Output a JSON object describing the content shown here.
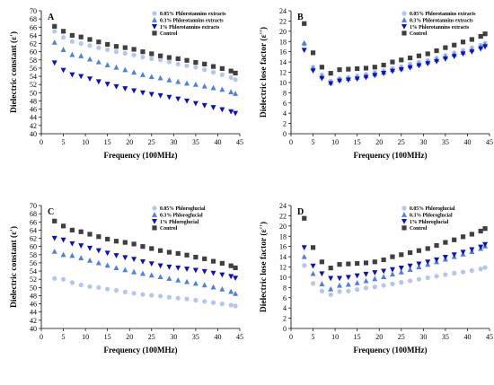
{
  "series_styles": [
    {
      "marker": "circle",
      "color": "#b4c6ee"
    },
    {
      "marker": "triangle-up",
      "color": "#4e80e4"
    },
    {
      "marker": "triangle-down",
      "color": "#0c12c4"
    },
    {
      "marker": "square",
      "color": "#3f3f3f"
    }
  ],
  "chart_data": [
    {
      "panel": "A",
      "type": "scatter",
      "xlabel": "Frequency (100MHz)",
      "ylabel": "Dielectric constant (ε')",
      "xlim": [
        0,
        45
      ],
      "ylim": [
        40,
        70
      ],
      "xticks": [
        "0",
        "5",
        "10",
        "15",
        "20",
        "25",
        "30",
        "35",
        "40",
        "45"
      ],
      "yticks": [
        "40",
        "42",
        "44",
        "46",
        "48",
        "50",
        "52",
        "54",
        "56",
        "58",
        "60",
        "62",
        "64",
        "66",
        "68",
        "70"
      ],
      "legend_position": "top-right",
      "x": [
        3,
        5,
        7,
        9,
        11,
        13,
        15,
        17,
        19,
        21,
        23,
        25,
        27,
        29,
        31,
        33,
        35,
        37,
        39,
        41,
        43,
        44
      ],
      "series": [
        {
          "name": "0.05% Phlorotannins extracts",
          "values": [
            65.0,
            63.5,
            62.5,
            62.0,
            61.5,
            61.0,
            60.5,
            60.0,
            59.6,
            59.2,
            58.7,
            58.3,
            58.0,
            57.5,
            57.0,
            56.6,
            56.2,
            55.6,
            55.0,
            54.4,
            53.7,
            53.2
          ]
        },
        {
          "name": "0.3% Phlorotannins extracts",
          "values": [
            62.3,
            60.5,
            59.3,
            59.0,
            58.2,
            57.5,
            56.8,
            56.2,
            55.6,
            55.0,
            54.4,
            53.9,
            53.6,
            53.1,
            52.7,
            52.3,
            52.0,
            51.6,
            51.2,
            50.8,
            50.2,
            49.8
          ]
        },
        {
          "name": "1% Phlorotannins extracts",
          "values": [
            57.3,
            55.5,
            54.4,
            54.0,
            53.4,
            52.7,
            52.1,
            51.5,
            51.0,
            50.5,
            50.0,
            49.6,
            49.3,
            48.9,
            48.5,
            48.0,
            47.4,
            46.9,
            46.4,
            45.9,
            45.4,
            45.0
          ]
        },
        {
          "name": "Control",
          "values": [
            66.2,
            65.0,
            64.0,
            63.6,
            63.0,
            62.4,
            61.8,
            61.3,
            61.0,
            60.6,
            60.0,
            59.5,
            59.0,
            58.6,
            58.3,
            57.9,
            57.4,
            57.0,
            56.4,
            55.9,
            55.3,
            54.8
          ]
        }
      ]
    },
    {
      "panel": "B",
      "type": "scatter",
      "xlabel": "Frequency (100MHz)",
      "ylabel": "Dielectric lose factor (ε'')",
      "xlim": [
        0,
        45
      ],
      "ylim": [
        0,
        24
      ],
      "xticks": [
        "0",
        "5",
        "10",
        "15",
        "20",
        "25",
        "30",
        "35",
        "40",
        "45"
      ],
      "yticks": [
        "0",
        "2",
        "4",
        "6",
        "8",
        "10",
        "12",
        "14",
        "16",
        "18",
        "20",
        "22",
        "24"
      ],
      "legend_position": "top-right",
      "x": [
        3,
        5,
        7,
        9,
        11,
        13,
        15,
        17,
        19,
        21,
        23,
        25,
        27,
        29,
        31,
        33,
        35,
        37,
        39,
        41,
        43,
        44
      ],
      "series": [
        {
          "name": "0.05% Phlorotannins extracts",
          "values": [
            17.5,
            13.0,
            11.5,
            10.3,
            10.8,
            11.0,
            11.3,
            11.6,
            12.0,
            12.3,
            12.8,
            13.1,
            13.6,
            14.0,
            14.3,
            14.8,
            15.3,
            15.8,
            16.3,
            16.8,
            17.3,
            17.7
          ]
        },
        {
          "name": "0.3% Phlorotannins extracts",
          "values": [
            17.7,
            12.8,
            11.2,
            10.0,
            10.6,
            10.8,
            11.0,
            11.3,
            11.7,
            12.0,
            12.5,
            12.8,
            13.2,
            13.6,
            14.0,
            14.5,
            15.0,
            15.5,
            15.9,
            16.4,
            17.0,
            17.4
          ]
        },
        {
          "name": "1% Phlorotannins extracts",
          "values": [
            16.3,
            12.3,
            10.8,
            9.8,
            10.3,
            10.5,
            10.7,
            11.0,
            11.4,
            11.8,
            12.2,
            12.5,
            12.9,
            13.3,
            13.7,
            14.1,
            14.6,
            15.1,
            15.6,
            16.0,
            16.6,
            17.0
          ]
        },
        {
          "name": "Control",
          "values": [
            21.5,
            15.8,
            13.0,
            11.8,
            12.5,
            12.6,
            12.7,
            12.8,
            13.0,
            13.4,
            14.0,
            14.4,
            14.8,
            15.2,
            15.6,
            16.2,
            16.8,
            17.3,
            17.9,
            18.4,
            19.0,
            19.5
          ]
        }
      ]
    },
    {
      "panel": "C",
      "type": "scatter",
      "xlabel": "Frequency (100MHz)",
      "ylabel": "Dielectric constant (ε')",
      "xlim": [
        0,
        45
      ],
      "ylim": [
        40,
        70
      ],
      "xticks": [
        "0",
        "5",
        "10",
        "15",
        "20",
        "25",
        "30",
        "35",
        "40",
        "45"
      ],
      "yticks": [
        "40",
        "42",
        "44",
        "46",
        "48",
        "50",
        "52",
        "54",
        "56",
        "58",
        "60",
        "62",
        "64",
        "66",
        "68",
        "70"
      ],
      "legend_position": "top-right",
      "x": [
        3,
        5,
        7,
        9,
        11,
        13,
        15,
        17,
        19,
        21,
        23,
        25,
        27,
        29,
        31,
        33,
        35,
        37,
        39,
        41,
        43,
        44
      ],
      "series": [
        {
          "name": "0.05% Phloroglucial",
          "values": [
            52.2,
            52.0,
            51.2,
            50.6,
            50.2,
            50.0,
            49.6,
            49.3,
            48.9,
            48.6,
            48.3,
            48.1,
            47.9,
            47.6,
            47.4,
            47.2,
            46.9,
            46.6,
            46.3,
            46.0,
            45.7,
            45.5
          ]
        },
        {
          "name": "0.3% Phloroglucial",
          "values": [
            58.8,
            58.0,
            57.8,
            57.2,
            56.6,
            56.0,
            55.4,
            54.8,
            54.3,
            53.8,
            53.4,
            53.0,
            52.6,
            52.2,
            51.8,
            51.4,
            51.0,
            50.6,
            50.1,
            49.6,
            49.0,
            48.5
          ]
        },
        {
          "name": "1% Phloroglucial",
          "values": [
            62.0,
            61.6,
            60.7,
            60.2,
            59.6,
            59.0,
            58.4,
            57.8,
            57.3,
            56.9,
            56.3,
            55.8,
            55.3,
            55.0,
            54.8,
            54.5,
            54.2,
            53.9,
            53.5,
            53.1,
            52.7,
            52.3
          ]
        },
        {
          "name": "Control",
          "values": [
            66.2,
            65.0,
            64.0,
            63.6,
            63.0,
            62.4,
            61.8,
            61.3,
            61.0,
            60.6,
            60.0,
            59.5,
            59.0,
            58.6,
            58.3,
            57.9,
            57.4,
            57.0,
            56.4,
            55.9,
            55.3,
            54.8
          ]
        }
      ]
    },
    {
      "panel": "D",
      "type": "scatter",
      "xlabel": "Frequency (100MHz)",
      "ylabel": "Dielectric lose factor (ε'')",
      "xlim": [
        0,
        45
      ],
      "ylim": [
        0,
        24
      ],
      "xticks": [
        "0",
        "5",
        "10",
        "15",
        "20",
        "25",
        "30",
        "35",
        "40",
        "45"
      ],
      "yticks": [
        "0",
        "2",
        "4",
        "6",
        "8",
        "10",
        "12",
        "14",
        "16",
        "18",
        "20",
        "22",
        "24"
      ],
      "legend_position": "top-right",
      "x": [
        3,
        5,
        7,
        9,
        11,
        13,
        15,
        17,
        19,
        21,
        23,
        25,
        27,
        29,
        31,
        33,
        35,
        37,
        39,
        41,
        43,
        44
      ],
      "series": [
        {
          "name": "0.05% Phloroglucial",
          "values": [
            12.3,
            8.8,
            7.3,
            6.6,
            7.2,
            7.3,
            7.6,
            7.9,
            8.1,
            8.4,
            8.7,
            9.0,
            9.3,
            9.6,
            9.9,
            10.2,
            10.5,
            10.8,
            11.0,
            11.3,
            11.6,
            11.9
          ]
        },
        {
          "name": "0.3% Phloroglucial",
          "values": [
            14.0,
            10.7,
            8.7,
            7.7,
            8.4,
            8.6,
            8.9,
            9.3,
            9.7,
            10.1,
            10.6,
            11.0,
            11.5,
            12.0,
            12.5,
            13.0,
            13.5,
            14.0,
            14.5,
            15.0,
            15.6,
            16.1
          ]
        },
        {
          "name": "1% Phloroglucial",
          "values": [
            15.8,
            12.2,
            10.7,
            9.8,
            9.8,
            10.0,
            10.3,
            10.6,
            10.9,
            11.2,
            11.5,
            11.8,
            12.2,
            12.6,
            13.0,
            13.4,
            13.9,
            14.4,
            14.9,
            15.4,
            15.9,
            16.4
          ]
        },
        {
          "name": "Control",
          "values": [
            21.5,
            15.8,
            13.0,
            11.8,
            12.5,
            12.6,
            12.7,
            12.8,
            13.0,
            13.4,
            14.0,
            14.4,
            14.8,
            15.2,
            15.6,
            16.2,
            16.8,
            17.3,
            17.9,
            18.4,
            19.0,
            19.5
          ]
        }
      ]
    }
  ]
}
